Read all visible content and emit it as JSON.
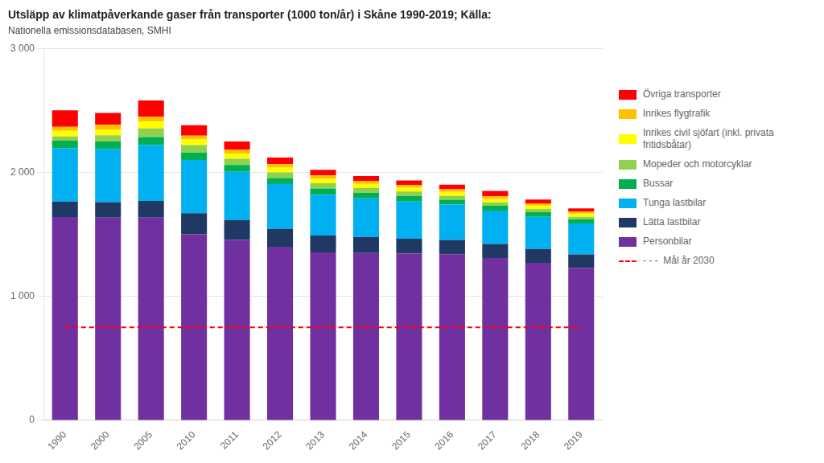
{
  "chart_data": {
    "type": "bar",
    "title": "Utsläpp av klimatpåverkande gaser från transporter (1000 ton/år) i Skåne 1990-2019; Källa:",
    "subtitle": "Nationella emissionsdatabasen, SMHI",
    "categories": [
      "1990",
      "2000",
      "2005",
      "2010",
      "2011",
      "2012",
      "2013",
      "2014",
      "2015",
      "2016",
      "2017",
      "2018",
      "2019"
    ],
    "series": [
      {
        "name": "Personbilar",
        "color": "#7030A0",
        "values": [
          1640,
          1635,
          1635,
          1500,
          1455,
          1400,
          1355,
          1350,
          1345,
          1340,
          1310,
          1270,
          1230
        ]
      },
      {
        "name": "Lätta lastbilar",
        "color": "#1F3864",
        "values": [
          125,
          125,
          135,
          170,
          160,
          145,
          135,
          130,
          120,
          115,
          112,
          112,
          108
        ]
      },
      {
        "name": "Tunga lastbilar",
        "color": "#00B0F0",
        "values": [
          430,
          430,
          450,
          430,
          390,
          360,
          330,
          310,
          300,
          285,
          270,
          260,
          250
        ]
      },
      {
        "name": "Bussar",
        "color": "#00B050",
        "values": [
          60,
          60,
          65,
          60,
          55,
          50,
          50,
          45,
          45,
          40,
          38,
          36,
          32
        ]
      },
      {
        "name": "Mopeder och motorcyklar",
        "color": "#92D050",
        "values": [
          35,
          50,
          70,
          60,
          50,
          45,
          42,
          38,
          35,
          30,
          28,
          27,
          22
        ]
      },
      {
        "name": "Inrikes civil sjöfart (inkl. privata\nfritidsbåtar)",
        "color": "#FFFF00",
        "values": [
          45,
          45,
          55,
          45,
          40,
          38,
          36,
          34,
          32,
          32,
          28,
          27,
          26
        ]
      },
      {
        "name": "Inrikes flygtrafik",
        "color": "#FFC000",
        "values": [
          32,
          38,
          38,
          32,
          32,
          28,
          27,
          24,
          22,
          21,
          21,
          18,
          16
        ]
      },
      {
        "name": "Övriga transporter",
        "color": "#FF0000",
        "values": [
          133,
          97,
          132,
          83,
          68,
          54,
          45,
          39,
          36,
          37,
          43,
          31,
          26
        ]
      },
      {
        "name": "- - -  Mål år 2030",
        "type": "line",
        "line_style": "dashed",
        "color": "red",
        "values": [
          750,
          750,
          750,
          750,
          750,
          750,
          750,
          750,
          750,
          750,
          750,
          750,
          750
        ]
      }
    ],
    "ylim": [
      0,
      3000
    ],
    "yticks": [
      0,
      {
        "value": 1000,
        "label": "1 000"
      },
      {
        "value": 2000,
        "label": "2 000"
      },
      {
        "value": 3000,
        "label": "3 000"
      }
    ],
    "stacked": true,
    "grid": true,
    "legend": "right"
  }
}
